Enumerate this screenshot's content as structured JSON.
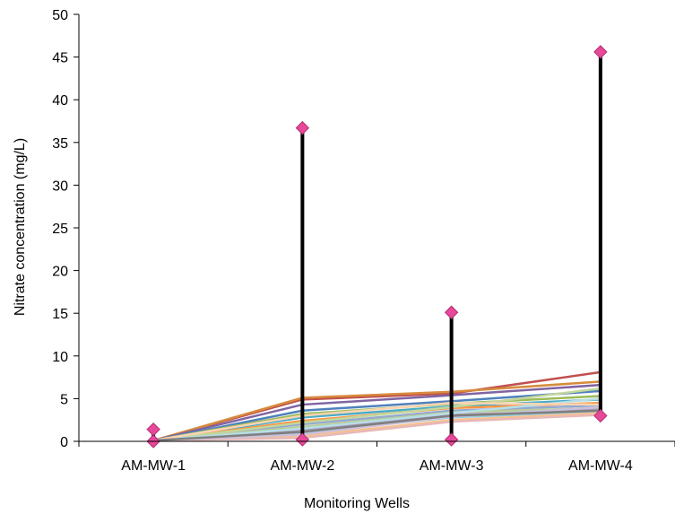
{
  "chart_data": {
    "type": "line",
    "title": "",
    "xlabel": "Monitoring Wells",
    "ylabel": "Nitrate concentration (mg/L)",
    "categories": [
      "AM-MW-1",
      "AM-MW-2",
      "AM-MW-3",
      "AM-MW-4"
    ],
    "ylim": [
      0,
      50
    ],
    "yticks": [
      0,
      5,
      10,
      15,
      20,
      25,
      30,
      35,
      40,
      45,
      50
    ],
    "grid": false,
    "legend": "none",
    "range_markers": {
      "color": "#e8489a",
      "line_color": "#000000",
      "max": [
        1.4,
        36.7,
        15.1,
        45.6
      ],
      "min": [
        0.0,
        0.2,
        0.2,
        3.0
      ]
    },
    "series": [
      {
        "color": "#c0504d",
        "values": [
          0.1,
          4.9,
          5.6,
          8.1
        ]
      },
      {
        "color": "#d68b3c",
        "values": [
          0.1,
          5.1,
          5.8,
          7.0
        ]
      },
      {
        "color": "#8064a2",
        "values": [
          0.1,
          4.3,
          5.4,
          6.6
        ]
      },
      {
        "color": "#4f81bd",
        "values": [
          0.1,
          3.6,
          4.7,
          5.9
        ]
      },
      {
        "color": "#9bbb59",
        "values": [
          0.1,
          3.2,
          4.4,
          5.3
        ]
      },
      {
        "color": "#4bacc6",
        "values": [
          0.1,
          2.8,
          4.1,
          4.9
        ]
      },
      {
        "color": "#f79646",
        "values": [
          0.1,
          2.4,
          3.9,
          4.5
        ]
      },
      {
        "color": "#93a9cf",
        "values": [
          0.1,
          2.0,
          3.6,
          4.2
        ]
      },
      {
        "color": "#b9cd96",
        "values": [
          0.1,
          1.7,
          3.4,
          3.9
        ]
      },
      {
        "color": "#a99bbd",
        "values": [
          0.1,
          1.3,
          3.1,
          3.7
        ]
      },
      {
        "color": "#92cddc",
        "values": [
          0.1,
          1.0,
          2.8,
          3.5
        ]
      },
      {
        "color": "#fac08f",
        "values": [
          0.1,
          0.6,
          2.5,
          3.3
        ]
      },
      {
        "color": "#e6b9b8",
        "values": [
          0.1,
          0.4,
          2.3,
          3.1
        ]
      },
      {
        "color": "#c3d69b",
        "values": [
          0.1,
          2.2,
          4.0,
          6.2
        ]
      },
      {
        "color": "#b7dee8",
        "values": [
          0.1,
          1.5,
          3.3,
          5.0
        ]
      },
      {
        "color": "#ccc1da",
        "values": [
          0.1,
          0.8,
          2.9,
          4.0
        ]
      },
      {
        "color": "#fcd5b4",
        "values": [
          0.1,
          3.0,
          4.5,
          4.3
        ]
      },
      {
        "color": "#7f7f7f",
        "values": [
          0.1,
          1.1,
          3.0,
          3.6
        ]
      }
    ]
  }
}
